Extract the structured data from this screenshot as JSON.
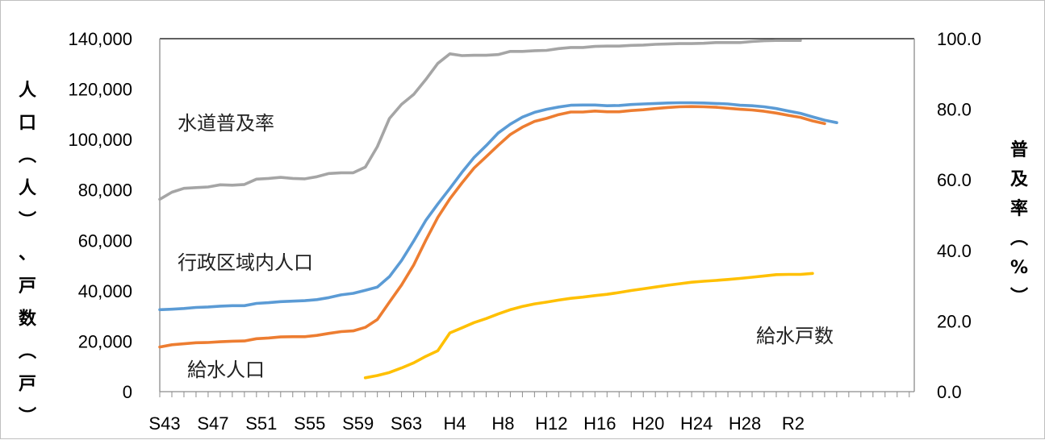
{
  "chart_data": {
    "type": "line",
    "title": "",
    "ylabel": "人口(人)、戸数(戸)",
    "y2label": "普及率(%)",
    "ylim": [
      0,
      140000
    ],
    "y2lim": [
      0,
      100
    ],
    "yticks": [
      "0",
      "20,000",
      "40,000",
      "60,000",
      "80,000",
      "100,000",
      "120,000",
      "140,000"
    ],
    "y2ticks": [
      "0.0",
      "20.0",
      "40.0",
      "60.0",
      "80.0",
      "100.0"
    ],
    "x_labels": [
      "S43",
      "S47",
      "S51",
      "S55",
      "S59",
      "S63",
      "H4",
      "H8",
      "H12",
      "H16",
      "H20",
      "H24",
      "H28",
      "R2"
    ],
    "x_start_year": "S43",
    "grid": false,
    "legend": "inline labels",
    "series": [
      {
        "name": "水道普及率",
        "axis": "right",
        "color": "#a5a5a5",
        "start_index": 0,
        "values": [
          54.5,
          56.5,
          57.6,
          57.8,
          58.0,
          58.6,
          58.5,
          58.7,
          60.2,
          60.4,
          60.7,
          60.4,
          60.3,
          60.9,
          61.8,
          62.0,
          62.0,
          63.6,
          69.4,
          77.4,
          81.4,
          84.2,
          88.4,
          93.0,
          95.7,
          95.2,
          95.3,
          95.3,
          95.5,
          96.4,
          96.4,
          96.6,
          96.7,
          97.2,
          97.5,
          97.5,
          97.8,
          97.9,
          97.9,
          98.1,
          98.2,
          98.4,
          98.5,
          98.6,
          98.6,
          98.7,
          98.9,
          98.9,
          98.9,
          99.2,
          99.4,
          99.5,
          99.5,
          99.5
        ]
      },
      {
        "name": "行政区域内人口",
        "axis": "left",
        "color": "#5b9bd5",
        "start_index": 0,
        "values": [
          32500,
          32700,
          33000,
          33400,
          33600,
          33900,
          34100,
          34100,
          35000,
          35300,
          35700,
          35900,
          36100,
          36500,
          37300,
          38400,
          39000,
          40200,
          41500,
          45600,
          52000,
          59700,
          67900,
          74400,
          80600,
          87000,
          92900,
          97600,
          102600,
          106100,
          108900,
          110800,
          112000,
          112900,
          113600,
          113700,
          113700,
          113400,
          113500,
          113900,
          114100,
          114300,
          114500,
          114600,
          114600,
          114500,
          114300,
          114100,
          113600,
          113400,
          113000,
          112300,
          111300,
          110400,
          109000,
          107700,
          106700
        ]
      },
      {
        "name": "給水人口",
        "axis": "left",
        "color": "#ed7d31",
        "start_index": 0,
        "values": [
          17700,
          18600,
          19000,
          19400,
          19500,
          19800,
          20000,
          20100,
          21000,
          21300,
          21700,
          21800,
          21800,
          22300,
          23100,
          23800,
          24100,
          25500,
          28600,
          35500,
          42300,
          50200,
          60000,
          69100,
          76500,
          82800,
          88700,
          93200,
          97700,
          102000,
          104900,
          107200,
          108400,
          109900,
          110900,
          110900,
          111300,
          111000,
          111000,
          111500,
          111800,
          112300,
          112700,
          113000,
          113100,
          113000,
          112800,
          112400,
          112000,
          111700,
          111200,
          110500,
          109600,
          108800,
          107400,
          106300
        ]
      },
      {
        "name": "給水戸数",
        "axis": "left",
        "color": "#ffc000",
        "start_index": 17,
        "values": [
          5500,
          6400,
          7600,
          9400,
          11400,
          14000,
          16200,
          23300,
          25300,
          27400,
          29000,
          30800,
          32500,
          33800,
          34800,
          35500,
          36300,
          37000,
          37500,
          38100,
          38600,
          39300,
          40100,
          40800,
          41500,
          42200,
          42800,
          43400,
          43800,
          44100,
          44500,
          44900,
          45400,
          45900,
          46400,
          46500,
          46500,
          46900
        ]
      }
    ]
  }
}
